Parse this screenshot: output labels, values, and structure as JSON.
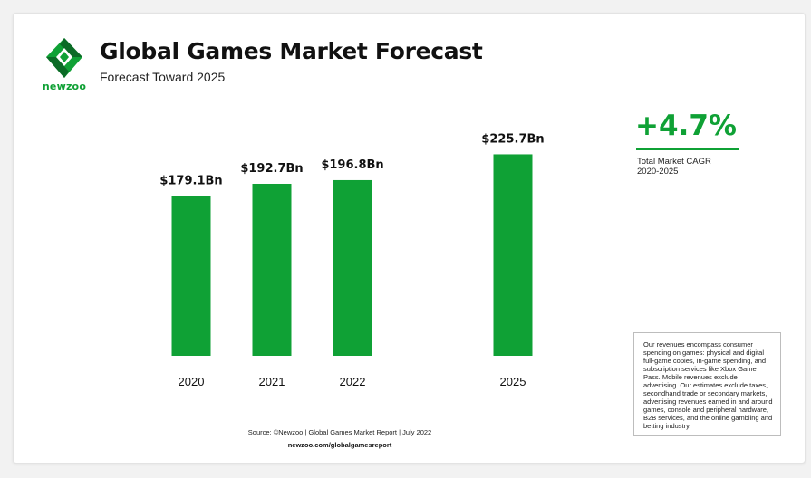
{
  "header": {
    "logo_text": "newzoo",
    "title": "Global Games Market Forecast",
    "subtitle": "Forecast Toward 2025"
  },
  "cagr": {
    "value": "+4.7%",
    "label_line1": "Total Market CAGR",
    "label_line2": "2020-2025"
  },
  "note": "Our revenues encompass consumer spending on games: physical and digital full-game copies, in-game spending, and subscription services like Xbox Game Pass. Mobile revenues exclude advertising. Our estimates exclude taxes, secondhand trade or secondary markets, advertising revenues earned in and around games, console and peripheral hardware, B2B services, and the online gambling and betting industry.",
  "footer": {
    "source": "Source: ©Newzoo | Global Games Market Report | July 2022",
    "url": "newzoo.com/globalgamesreport"
  },
  "colors": {
    "bar": "#0fa135",
    "accent": "#0fa135",
    "logo_dark": "#0b6b26"
  },
  "chart_data": {
    "type": "bar",
    "categories": [
      "2020",
      "2021",
      "2022",
      "2025"
    ],
    "values": [
      179.1,
      192.7,
      196.8,
      225.7
    ],
    "data_labels": [
      "$179.1Bn",
      "$192.7Bn",
      "$196.8Bn",
      "$225.7Bn"
    ],
    "unit": "Bn USD",
    "grid": false,
    "legend": "none"
  }
}
